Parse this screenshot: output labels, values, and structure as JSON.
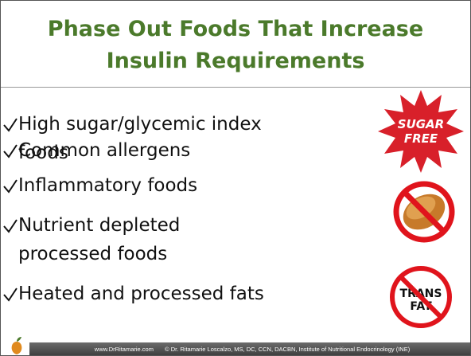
{
  "title": "Phase Out Foods That Increase Insulin Requirements",
  "bullets": [
    "High sugar/glycemic index foods",
    "Common allergens",
    "Inflammatory foods",
    "Nutrient depleted processed foods",
    "Heated and processed fats"
  ],
  "icons": {
    "sugar_free": [
      "SUGAR",
      "FREE"
    ],
    "trans_fat": [
      "TRANS",
      "FAT"
    ]
  },
  "footer": {
    "website": "www.DrRitamarie.com",
    "credit": "© Dr. Ritamarie Loscalzo, MS, DC, CCN, DACBN, Institute of Nutritional Endocrinology (INE)"
  }
}
